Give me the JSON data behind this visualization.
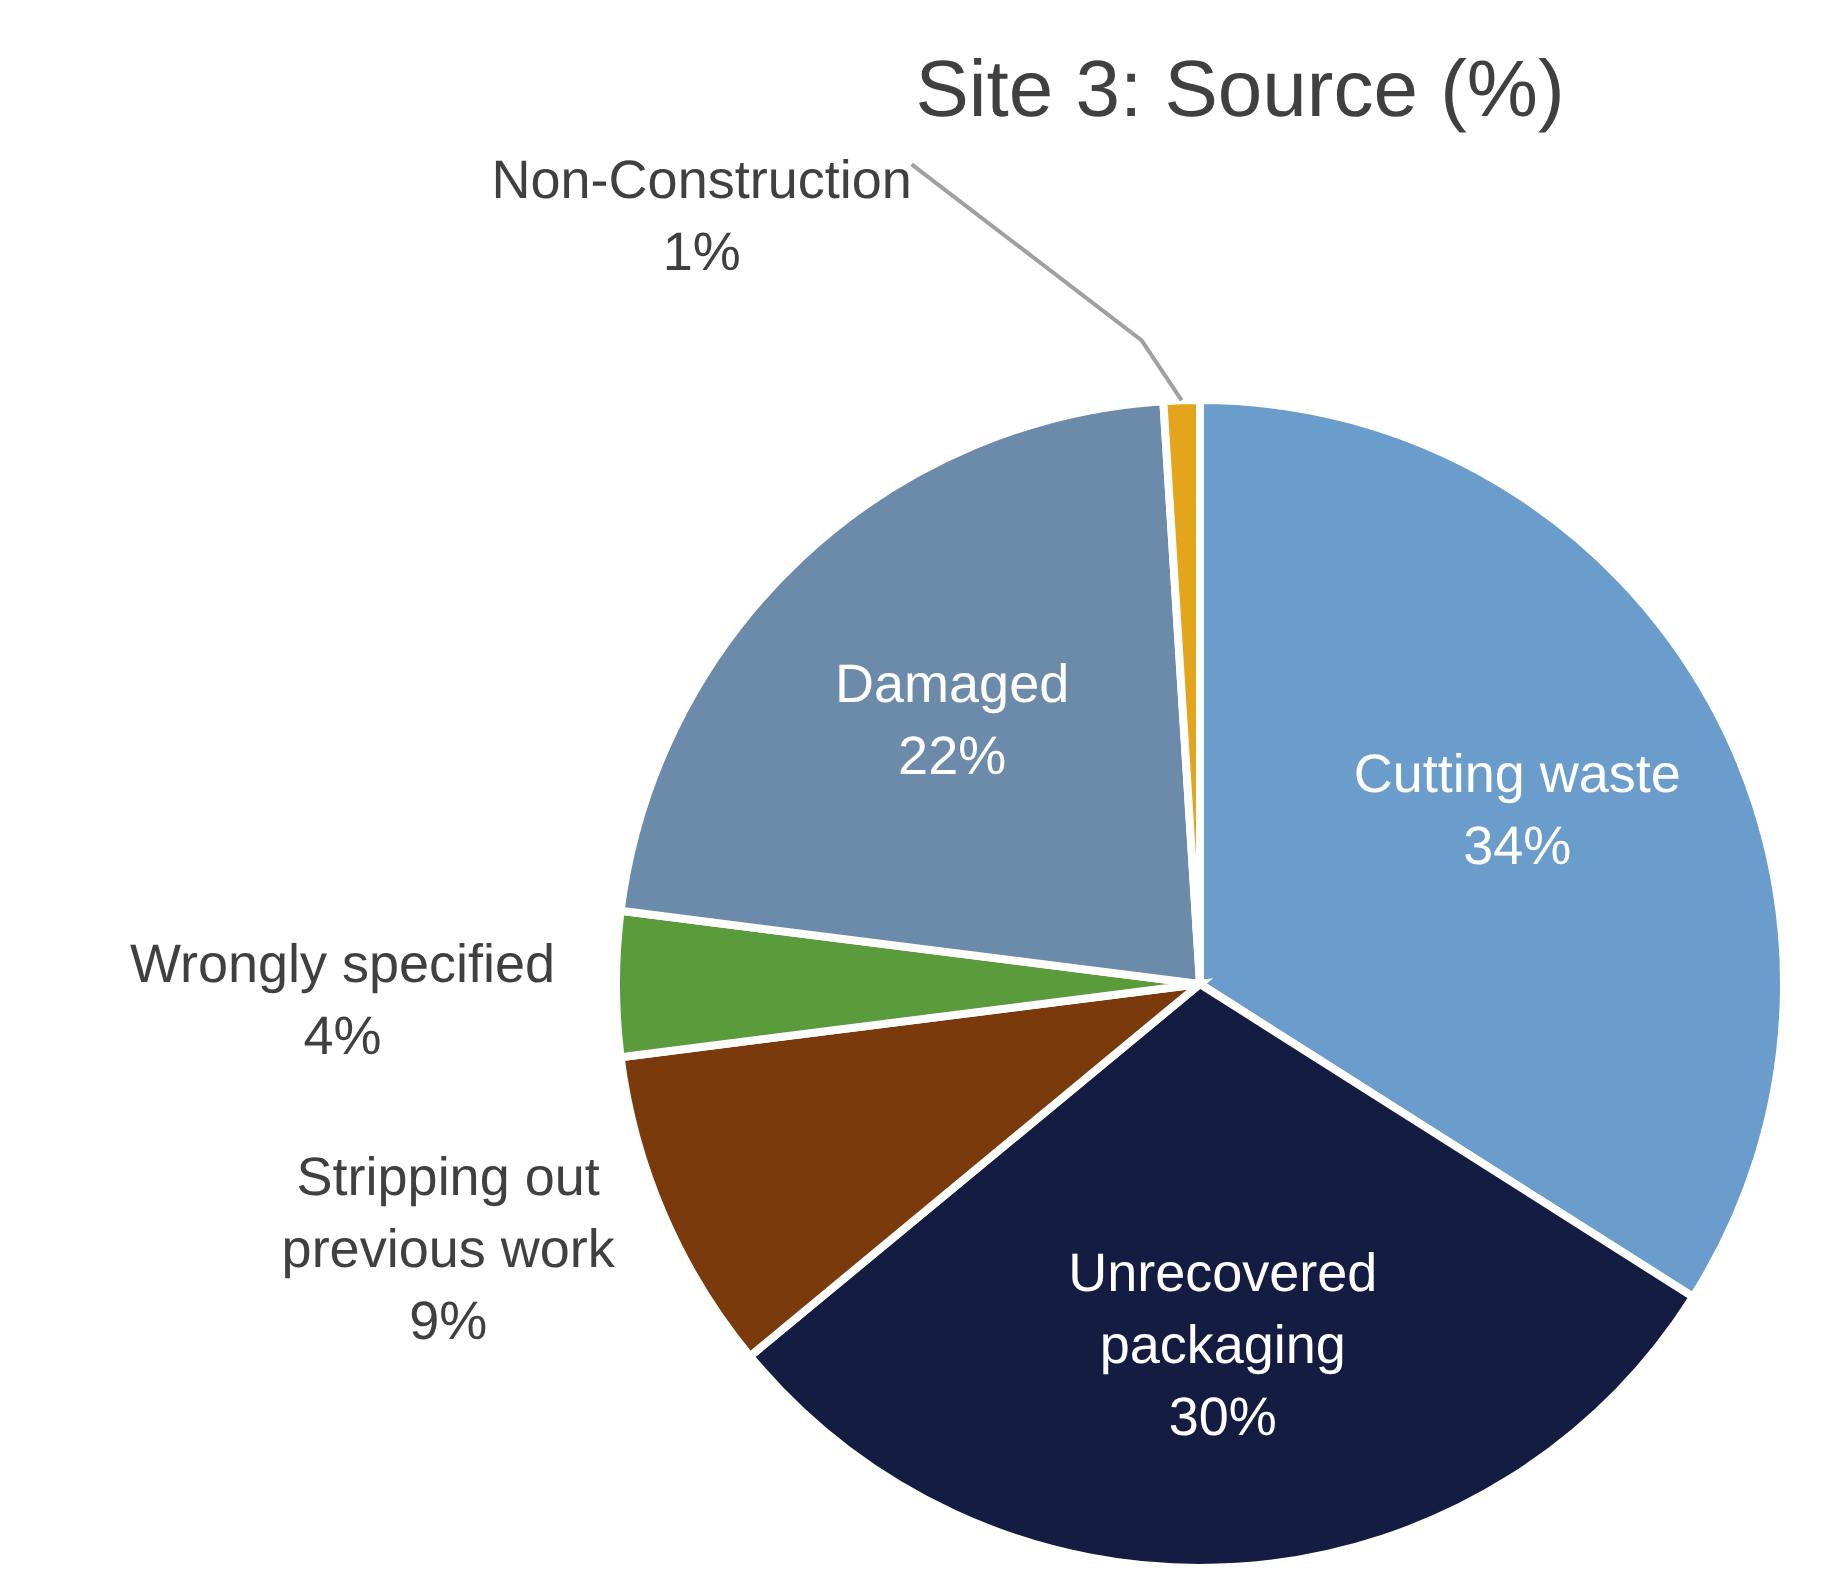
{
  "chart_data": {
    "type": "pie",
    "title": "Site 3: Source (%)",
    "categories": [
      "Cutting waste",
      "Unrecovered packaging",
      "Stripping out previous work",
      "Wrongly specified",
      "Damaged",
      "Non-Construction"
    ],
    "values": [
      34,
      30,
      9,
      4,
      22,
      1
    ],
    "value_labels": [
      "34%",
      "30%",
      "9%",
      "4%",
      "22%",
      "1%"
    ],
    "colors": [
      "#6b9dcc",
      "#141c42",
      "#7a3a0c",
      "#5a9b3c",
      "#6c8aaa",
      "#e3a51c"
    ]
  }
}
